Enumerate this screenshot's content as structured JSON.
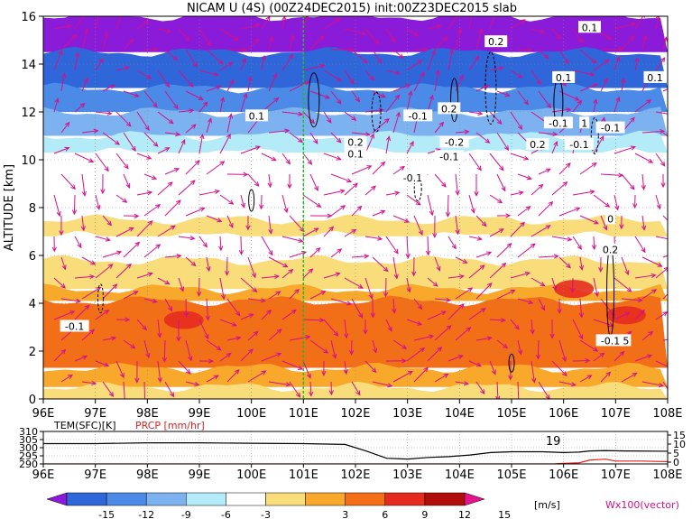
{
  "chart_data": {
    "type": "heatmap",
    "title": "NICAM U (4S) (00Z24DEC2015) init:00Z23DEC2015 slab",
    "ylabel": "ALTITUDE [km]",
    "x_ticks": [
      "96E",
      "97E",
      "98E",
      "99E",
      "100E",
      "101E",
      "102E",
      "103E",
      "104E",
      "105E",
      "106E",
      "107E",
      "108E"
    ],
    "x_range": [
      96,
      108
    ],
    "y_ticks": [
      "0",
      "2",
      "4",
      "6",
      "8",
      "10",
      "12",
      "14",
      "16"
    ],
    "y_range": [
      0,
      16
    ],
    "marker_longitude": 101,
    "bands": [
      {
        "y0": 14.5,
        "y1": 16,
        "value": -15
      },
      {
        "y0": 13,
        "y1": 14.5,
        "value": -12
      },
      {
        "y0": 12,
        "y1": 13,
        "value": -9
      },
      {
        "y0": 11,
        "y1": 12,
        "value": -6
      },
      {
        "y0": 10.3,
        "y1": 11,
        "value": -3
      },
      {
        "y0": 7.5,
        "y1": 10.3,
        "value": 0
      },
      {
        "y0": 6.8,
        "y1": 7.5,
        "value": 3
      },
      {
        "y0": 5.8,
        "y1": 6.8,
        "value": 0
      },
      {
        "y0": 4.6,
        "y1": 5.8,
        "value": 3
      },
      {
        "y0": 4.1,
        "y1": 4.6,
        "value": 6
      },
      {
        "y0": 1.3,
        "y1": 4.1,
        "value": 9
      },
      {
        "y0": 0.5,
        "y1": 1.3,
        "value": 6
      },
      {
        "y0": 0,
        "y1": 0.5,
        "value": 3
      }
    ],
    "contour_labels": [
      {
        "text": "0.1",
        "x": 106.5,
        "y": 15.5
      },
      {
        "text": "0.2",
        "x": 104.7,
        "y": 14.9
      },
      {
        "text": "0.1",
        "x": 106.0,
        "y": 13.4
      },
      {
        "text": "0.1",
        "x": 108.0,
        "y": 13.4
      },
      {
        "text": "0.1",
        "x": 100.1,
        "y": 11.8
      },
      {
        "text": "-0.1",
        "x": 103.2,
        "y": 11.8
      },
      {
        "text": "0.2",
        "x": 103.8,
        "y": 12.1
      },
      {
        "text": "-0.1",
        "x": 105.9,
        "y": 11.5
      },
      {
        "text": "1",
        "x": 106.4,
        "y": 11.5
      },
      {
        "text": "-0.1",
        "x": 106.9,
        "y": 11.3
      },
      {
        "text": "-0.1",
        "x": 106.3,
        "y": 10.6
      },
      {
        "text": "0.2",
        "x": 102.0,
        "y": 10.7
      },
      {
        "text": "0.1",
        "x": 102.0,
        "y": 10.2
      },
      {
        "text": "-0.2",
        "x": 103.9,
        "y": 10.7
      },
      {
        "text": "0.2",
        "x": 105.5,
        "y": 10.6
      },
      {
        "text": "-0.1",
        "x": 103.8,
        "y": 10.1
      },
      {
        "text": "-0.1",
        "x": 103.1,
        "y": 9.2
      },
      {
        "text": "0",
        "x": 106.9,
        "y": 7.5
      },
      {
        "text": "0.2",
        "x": 106.9,
        "y": 6.2
      },
      {
        "text": "-0.1",
        "x": 96.6,
        "y": 3.0
      },
      {
        "text": "-0.1",
        "x": 106.9,
        "y": 2.4
      },
      {
        "text": "5",
        "x": 107.2,
        "y": 2.4
      }
    ],
    "vector_label": "Wx100(vector)",
    "colorbar": {
      "unit": "[m/s]",
      "labels": [
        "-15",
        "-12",
        "-9",
        "-6",
        "-3",
        "3",
        "6",
        "9",
        "12",
        "15"
      ],
      "colors": [
        "#8a1bd8",
        "#2f66d9",
        "#4b8ae6",
        "#7db2f0",
        "#b3ecf8",
        "#ffffff",
        "#f8dd7a",
        "#f8a82a",
        "#f36f17",
        "#e52b1e",
        "#b10d0b",
        "#e6138c"
      ]
    },
    "timeseries": {
      "left_label": "TEM(SFC)[K]",
      "right_label": "PRCP [mm/hr]",
      "left_ticks": [
        "310",
        "305",
        "300",
        "295",
        "290"
      ],
      "right_ticks": [
        "15",
        "10",
        "5",
        "0"
      ],
      "annotation": "19",
      "x_ticks": [
        "96E",
        "97E",
        "98E",
        "99E",
        "100E",
        "101E",
        "102E",
        "103E",
        "104E",
        "105E",
        "106E",
        "107E",
        "108E"
      ],
      "temperature": [
        [
          96,
          302.5
        ],
        [
          97,
          302.5
        ],
        [
          98,
          303
        ],
        [
          99,
          303
        ],
        [
          100,
          302.7
        ],
        [
          101,
          302.5
        ],
        [
          101.8,
          302
        ],
        [
          102.2,
          298
        ],
        [
          102.6,
          293.5
        ],
        [
          103,
          293
        ],
        [
          103.4,
          294
        ],
        [
          103.8,
          294.5
        ],
        [
          104.2,
          295.5
        ],
        [
          104.6,
          297
        ],
        [
          105,
          297.5
        ],
        [
          105.6,
          297.5
        ],
        [
          106,
          297
        ],
        [
          106.3,
          297.3
        ],
        [
          106.5,
          298
        ],
        [
          106.8,
          298.2
        ],
        [
          107.2,
          298
        ],
        [
          108,
          297.8
        ]
      ],
      "precip": [
        [
          96,
          0
        ],
        [
          105.8,
          0
        ],
        [
          106,
          0.3
        ],
        [
          106.3,
          0.6
        ],
        [
          106.5,
          2
        ],
        [
          106.8,
          2.5
        ],
        [
          107,
          1.5
        ],
        [
          107.5,
          1.5
        ],
        [
          108,
          1.2
        ]
      ]
    }
  }
}
